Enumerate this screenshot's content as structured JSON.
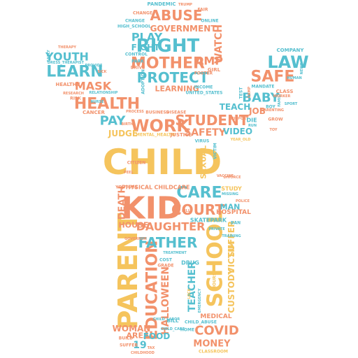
{
  "palette": {
    "teal": "#55bfcf",
    "coral": "#f2916b",
    "yellow": "#f5c45d"
  },
  "words": [
    {
      "text": "CHILD",
      "color": "yellow"
    },
    {
      "text": "KID",
      "color": "coral"
    },
    {
      "text": "PARENT",
      "color": "yellow"
    },
    {
      "text": "SCHOOL",
      "color": "yellow"
    },
    {
      "text": "EDUCATION",
      "color": "coral"
    },
    {
      "text": "RIGHT",
      "color": "teal"
    },
    {
      "text": "MOTHER",
      "color": "coral"
    },
    {
      "text": "PROTECT",
      "color": "teal"
    },
    {
      "text": "ABUSE",
      "color": "coral"
    },
    {
      "text": "GOVERNMENT",
      "color": "coral"
    },
    {
      "text": "PLAY",
      "color": "teal"
    },
    {
      "text": "FIGHT",
      "color": "teal"
    },
    {
      "text": "AMP",
      "color": "coral"
    },
    {
      "text": "WATCH",
      "color": "coral"
    },
    {
      "text": "LEARNING",
      "color": "coral"
    },
    {
      "text": "YOUTH",
      "color": "teal"
    },
    {
      "text": "LEARN",
      "color": "teal"
    },
    {
      "text": "MASK",
      "color": "coral"
    },
    {
      "text": "HEALTH",
      "color": "coral"
    },
    {
      "text": "LAW",
      "color": "teal"
    },
    {
      "text": "SAFE",
      "color": "coral"
    },
    {
      "text": "BABY",
      "color": "teal"
    },
    {
      "text": "JOB",
      "color": "coral"
    },
    {
      "text": "TEACH",
      "color": "teal"
    },
    {
      "text": "PAY",
      "color": "teal"
    },
    {
      "text": "WORK",
      "color": "coral"
    },
    {
      "text": "STUDENT",
      "color": "coral"
    },
    {
      "text": "SAFETY",
      "color": "coral"
    },
    {
      "text": "VIDEO",
      "color": "teal"
    },
    {
      "text": "JUDGE",
      "color": "yellow"
    },
    {
      "text": "CARE",
      "color": "teal"
    },
    {
      "text": "COURT",
      "color": "coral"
    },
    {
      "text": "MAN",
      "color": "teal"
    },
    {
      "text": "DAUGHTER",
      "color": "coral"
    },
    {
      "text": "FATHER",
      "color": "teal"
    },
    {
      "text": "HOUSE",
      "color": "coral"
    },
    {
      "text": "AREA",
      "color": "coral"
    },
    {
      "text": "DEATH",
      "color": "coral"
    },
    {
      "text": "HALLOWEEN",
      "color": "coral"
    },
    {
      "text": "TEACHER",
      "color": "teal"
    },
    {
      "text": "CUSTODY",
      "color": "yellow"
    },
    {
      "text": "VICTIM",
      "color": "yellow"
    },
    {
      "text": "SUFFER",
      "color": "yellow"
    },
    {
      "text": "COVID",
      "color": "coral"
    },
    {
      "text": "MONEY",
      "color": "coral"
    },
    {
      "text": "WOMAN",
      "color": "coral"
    },
    {
      "text": "FOOD",
      "color": "teal"
    },
    {
      "text": "19",
      "color": "teal"
    },
    {
      "text": "SEXUAL",
      "color": "yellow"
    },
    {
      "text": "MEDICAL",
      "color": "coral"
    },
    {
      "text": "HOSPITAL",
      "color": "coral"
    },
    {
      "text": "SKATEPARK",
      "color": "teal"
    },
    {
      "text": "DRUG",
      "color": "teal"
    },
    {
      "text": "PHYSICAL",
      "color": "coral"
    },
    {
      "text": "CHILDCARE",
      "color": "coral"
    },
    {
      "text": "PANDEMIC",
      "color": "teal"
    },
    {
      "text": "COMPANY",
      "color": "teal"
    },
    {
      "text": "CLASS",
      "color": "coral"
    },
    {
      "text": "CANCER",
      "color": "coral"
    },
    {
      "text": "BUSINESS",
      "color": "coral"
    },
    {
      "text": "DISEASE",
      "color": "coral"
    },
    {
      "text": "CONTROL",
      "color": "teal"
    },
    {
      "text": "PARK",
      "color": "teal"
    },
    {
      "text": "DRIVE",
      "color": "coral"
    },
    {
      "text": "HEALTHY",
      "color": "coral"
    },
    {
      "text": "THERAPY",
      "color": "coral"
    },
    {
      "text": "CHANGE",
      "color": "teal"
    },
    {
      "text": "HIGH_SCHOOL",
      "color": "teal"
    },
    {
      "text": "PROCESS",
      "color": "coral"
    },
    {
      "text": "MANDATE",
      "color": "teal"
    },
    {
      "text": "CITIZEN",
      "color": "coral"
    },
    {
      "text": "VIRUS",
      "color": "teal"
    },
    {
      "text": "STUDY",
      "color": "yellow"
    },
    {
      "text": "BAN",
      "color": "teal"
    },
    {
      "text": "MENTAL_HEALTH",
      "color": "yellow"
    },
    {
      "text": "JUSTICE",
      "color": "coral"
    },
    {
      "text": "YOUTUBE",
      "color": "coral"
    },
    {
      "text": "BILL",
      "color": "teal"
    },
    {
      "text": "CLASSROOM",
      "color": "yellow"
    },
    {
      "text": "CHILD_ABUSE",
      "color": "teal"
    },
    {
      "text": "CHILDHOOD",
      "color": "coral"
    },
    {
      "text": "BUILD",
      "color": "coral"
    },
    {
      "text": "SUFFER",
      "color": "coral"
    },
    {
      "text": "COST",
      "color": "teal"
    },
    {
      "text": "GRADE",
      "color": "coral"
    },
    {
      "text": "FOSTER",
      "color": "coral"
    },
    {
      "text": "UNITED_STATES",
      "color": "teal"
    },
    {
      "text": "INCOME",
      "color": "teal"
    },
    {
      "text": "GIRL",
      "color": "coral"
    },
    {
      "text": "ADOPTION",
      "color": "teal"
    },
    {
      "text": "ONLINE",
      "color": "teal"
    },
    {
      "text": "FAIR",
      "color": "coral"
    },
    {
      "text": "TREATMENT",
      "color": "teal"
    },
    {
      "text": "CHILD_CARE",
      "color": "teal"
    },
    {
      "text": "PRIVATE",
      "color": "teal"
    },
    {
      "text": "EMERGENCY",
      "color": "teal"
    },
    {
      "text": "VACCINE",
      "color": "coral"
    },
    {
      "text": "HOME",
      "color": "teal"
    },
    {
      "text": "TAX",
      "color": "coral"
    },
    {
      "text": "LOCK",
      "color": "yellow"
    },
    {
      "text": "TEST",
      "color": "teal"
    },
    {
      "text": "CAMP",
      "color": "coral"
    },
    {
      "text": "GROW",
      "color": "coral"
    },
    {
      "text": "FAMILY",
      "color": "teal"
    },
    {
      "text": "SUPPORT",
      "color": "coral"
    },
    {
      "text": "GOVERNOR",
      "color": "coral"
    },
    {
      "text": "HUMAN",
      "color": "teal"
    },
    {
      "text": "NEWS",
      "color": "teal"
    },
    {
      "text": "PARENTING",
      "color": "coral"
    },
    {
      "text": "TOY",
      "color": "coral"
    },
    {
      "text": "SPORT",
      "color": "teal"
    },
    {
      "text": "SICK",
      "color": "coral"
    },
    {
      "text": "NURSE",
      "color": "teal"
    },
    {
      "text": "DIE",
      "color": "teal"
    },
    {
      "text": "CHANGE",
      "color": "coral"
    },
    {
      "text": "RUN",
      "color": "teal"
    },
    {
      "text": "HOURS",
      "color": "yellow"
    },
    {
      "text": "BIRTH",
      "color": "coral"
    },
    {
      "text": "BOY",
      "color": "teal"
    },
    {
      "text": "YEAR_OLD",
      "color": "yellow"
    },
    {
      "text": "MISSING",
      "color": "teal"
    },
    {
      "text": "POLICE",
      "color": "coral"
    },
    {
      "text": "TRAINING",
      "color": "teal"
    },
    {
      "text": "DIVORCE",
      "color": "coral"
    },
    {
      "text": "WORKER",
      "color": "coral"
    },
    {
      "text": "EARLY",
      "color": "teal"
    },
    {
      "text": "DRESS_THERAPIST",
      "color": "teal"
    },
    {
      "text": "RESEARCH",
      "color": "coral"
    },
    {
      "text": "RISK",
      "color": "coral"
    },
    {
      "text": "PROVIDE",
      "color": "teal"
    },
    {
      "text": "RELATIONSHIP",
      "color": "teal"
    },
    {
      "text": "TRUMP",
      "color": "coral"
    },
    {
      "text": "CHILD_LABOR",
      "color": "teal"
    },
    {
      "text": "FEEL",
      "color": "coral"
    },
    {
      "text": "KILL",
      "color": "coral"
    },
    {
      "text": "VICTIM",
      "color": "teal"
    }
  ]
}
